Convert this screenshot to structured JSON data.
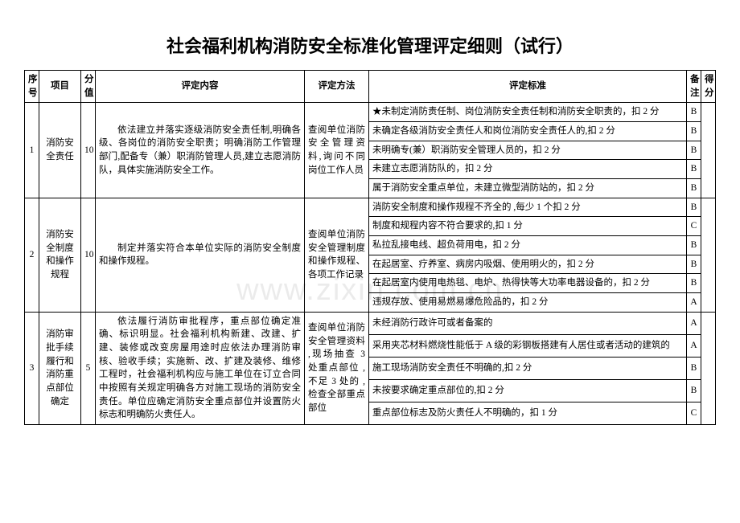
{
  "title": "社会福利机构消防安全标准化管理评定细则（试行）",
  "watermark": "www.zixin.com.cn",
  "headers": {
    "seq": "序号",
    "item": "项目",
    "score": "分值",
    "content": "评定内容",
    "method": "评定方法",
    "standard": "评定标准",
    "note": "备注",
    "got": "得分"
  },
  "rows": [
    {
      "seq": "1",
      "item": "消防安全责任",
      "score": "10",
      "content": "依法建立并落实逐级消防安全责任制,明确各级、各岗位的消防安全职责；明确消防工作管理部门,配备专（兼）职消防管理人员,建立志愿消防队，具体实施消防安全工作。",
      "method": "查阅单位消防安全管理资料,询问不同岗位工作人员",
      "standards": [
        {
          "text": "★未制定消防责任制、岗位消防安全责任制和消防安全职责的，扣 2 分",
          "note": "B"
        },
        {
          "text": "未确定各级消防安全责任人和岗位消防安全责任人的,扣 2 分",
          "note": "B"
        },
        {
          "text": "未明确专(兼）职消防安全管理人员的，扣 2 分",
          "note": "B"
        },
        {
          "text": "未建立志愿消防队的，扣 2 分",
          "note": "B"
        },
        {
          "text": "属于消防安全重点单位，未建立微型消防站的，扣 2 分",
          "note": "B"
        }
      ]
    },
    {
      "seq": "2",
      "item": "消防安全制度和操作规程",
      "score": "10",
      "content": "制定并落实符合本单位实际的消防安全制度和操作规程。",
      "method": "查阅单位消防安全管理制度和操作规程、各项工作记录",
      "standards": [
        {
          "text": "消防安全制度和操作规程不齐全的 ,每少 1 个扣 2 分",
          "note": "B"
        },
        {
          "text": "制度和规程内容不符合要求的,扣 1 分",
          "note": "C"
        },
        {
          "text": "私拉乱接电线、超负荷用电，扣 2 分",
          "note": "B"
        },
        {
          "text": "在起居室、疗养室、病房内吸烟、使用明火的，扣 2 分",
          "note": "B"
        },
        {
          "text": "在起居室内使用电热毯、电炉、热得快等大功率电器设备的，扣 2 分",
          "note": "B"
        },
        {
          "text": "违规存放、使用易燃易爆危险品的，扣 2 分",
          "note": "A"
        }
      ]
    },
    {
      "seq": "3",
      "item": "消防审批手续履行和消防重点部位确定",
      "score": "5",
      "content": "依法履行消防审批程序，重点部位确定准确、标识明显。社会福利机构新建、改建、扩建、装修或改变房屋用途时应依法办理消防审核、验收手续；实施新、改、扩建及装修、维修工程时，社会福利机构应与施工单位在订立合同中按照有关规定明确各方对施工现场的消防安全责任。单位应确定消防安全重点部位并设置防火标志和明确防火责任人。",
      "method": "查阅单位消防安全管理资料 ,现场抽查 3 处重点部位 ,不足 3 处的 ,检查全部重点部位",
      "standards": [
        {
          "text": "未经消防行政许可或者备案的",
          "note": "A"
        },
        {
          "text": "采用夹芯材料燃烧性能低于 A 级的彩钢板搭建有人居住或者活动的建筑的",
          "note": "A"
        },
        {
          "text": "施工现场消防安全责任不明确的,扣 2 分",
          "note": "B"
        },
        {
          "text": "未按要求确定重点部位的,扣 2 分",
          "note": "B"
        },
        {
          "text": "重点部位标志及防火责任人不明确的，扣 1 分",
          "note": "C"
        }
      ]
    }
  ]
}
